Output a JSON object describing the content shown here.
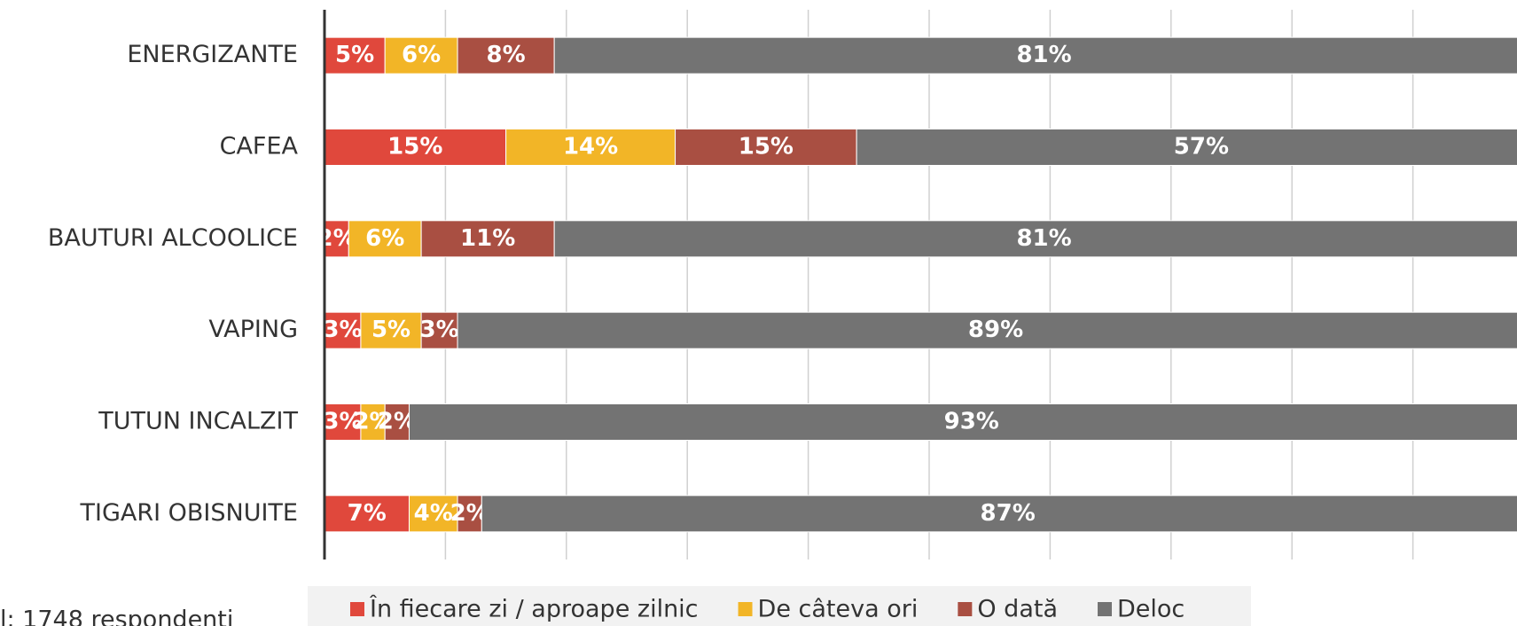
{
  "chart_data": {
    "type": "stacked_barh",
    "categories": [
      "ENERGIZANTE",
      "CAFEA",
      "BAUTURI ALCOOLICE",
      "VAPING",
      "TUTUN INCALZIT",
      "TIGARI OBISNUITE"
    ],
    "series": [
      {
        "name": "În fiecare zi / aproape zilnic",
        "color": "#e0483c",
        "values": [
          5,
          15,
          2,
          3,
          3,
          7
        ]
      },
      {
        "name": "De câteva ori",
        "color": "#f2b527",
        "values": [
          6,
          14,
          6,
          5,
          2,
          4
        ]
      },
      {
        "name": "O dată",
        "color": "#a94f42",
        "values": [
          8,
          15,
          11,
          3,
          2,
          2
        ]
      },
      {
        "name": "Deloc",
        "color": "#737373",
        "values": [
          81,
          57,
          81,
          89,
          93,
          87
        ]
      }
    ],
    "value_labels": [
      [
        "5%",
        "15%",
        "2%",
        "3%",
        "3%",
        "7%"
      ],
      [
        "6%",
        "14%",
        "6%",
        "5%",
        "2%",
        "4%"
      ],
      [
        "8%",
        "15%",
        "11%",
        "3%",
        "2%",
        "2%"
      ],
      [
        "81%",
        "57%",
        "81%",
        "89%",
        "93%",
        "87%"
      ]
    ],
    "xlim": [
      0,
      100
    ],
    "xticks": [
      0,
      10,
      20,
      30,
      40,
      50,
      60,
      70,
      80,
      90,
      100
    ],
    "grid": true,
    "legend": "bottom",
    "note": "l: 1748 respondenti"
  }
}
